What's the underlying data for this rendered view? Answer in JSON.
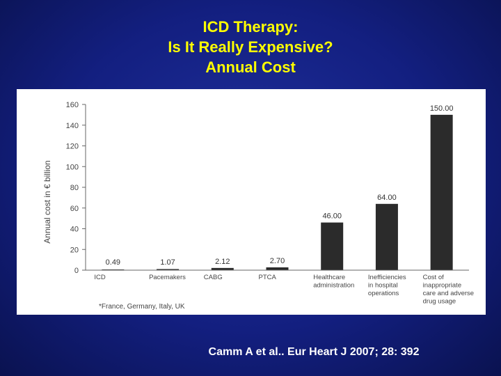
{
  "title_lines": [
    "ICD Therapy:",
    "Is It Really Expensive?",
    "Annual Cost"
  ],
  "citation": "Camm A et al.. Eur Heart J 2007; 28: 392",
  "colors": {
    "background": "#131f80",
    "title": "#ffff00",
    "citation": "#ffffff",
    "bar": "#2b2b2b",
    "panel": "#ffffff"
  },
  "chart_data": {
    "type": "bar",
    "ylabel": "Annual cost in € billion",
    "xlabel": "",
    "ylim": [
      0,
      160
    ],
    "yticks": [
      0,
      20,
      40,
      60,
      80,
      100,
      120,
      140,
      160
    ],
    "categories": [
      [
        "ICD"
      ],
      [
        "Pacemakers"
      ],
      [
        "CABG"
      ],
      [
        "PTCA"
      ],
      [
        "Healthcare",
        "administration"
      ],
      [
        "Inefficiencies",
        "in hospital",
        "operations"
      ],
      [
        "Cost of",
        "inappropriate",
        "care and adverse",
        "drug usage"
      ]
    ],
    "values": [
      0.49,
      1.07,
      2.12,
      2.7,
      46.0,
      64.0,
      150.0
    ],
    "value_labels": [
      "0.49",
      "1.07",
      "2.12",
      "2.70",
      "46.00",
      "64.00",
      "150.00"
    ],
    "footnote": "*France, Germany, Italy, UK",
    "grid": false,
    "legend": "none"
  }
}
